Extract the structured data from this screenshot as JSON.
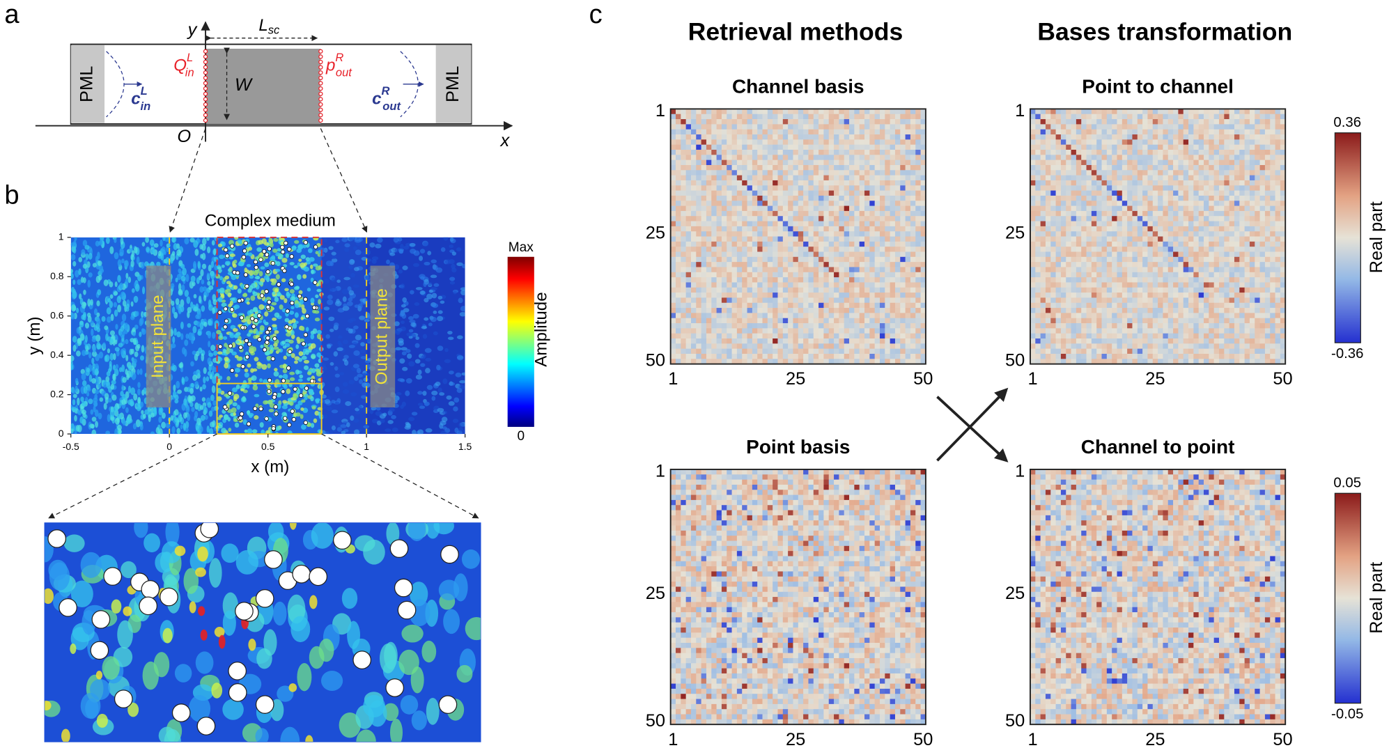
{
  "panels": {
    "a": {
      "label": "a",
      "pml_left": "PML",
      "pml_right": "PML",
      "y_axis": "y",
      "x_axis": "x",
      "origin": "O",
      "length": {
        "main": "L",
        "sub": "sc"
      },
      "width": "W",
      "q_in": {
        "main": "Q",
        "sub": "in",
        "sup": "L"
      },
      "p_out": {
        "main": "p",
        "sub": "out",
        "sup": "R"
      },
      "c_in": {
        "main": "c",
        "sub": "in",
        "sup": "L"
      },
      "c_out": {
        "main": "c",
        "sub": "out",
        "sup": "R"
      }
    },
    "b": {
      "label": "b",
      "title": "Complex medium",
      "input_plane": "Input plane",
      "output_plane": "Output plane",
      "xlabel": "x (m)",
      "ylabel": "y (m)",
      "xlim": [
        -0.5,
        1.5
      ],
      "xticks": [
        -0.5,
        0,
        0.5,
        1,
        1.5
      ],
      "ylim": [
        0,
        1
      ],
      "yticks": [
        0,
        0.2,
        0.4,
        0.6,
        0.8,
        1
      ],
      "colorbar": {
        "max": "Max",
        "min": "0",
        "label": "Amplitude"
      }
    },
    "c": {
      "label": "c",
      "col_titles": [
        "Retrieval methods",
        "Bases transformation"
      ],
      "maps": [
        {
          "title": "Channel basis"
        },
        {
          "title": "Point to channel"
        },
        {
          "title": "Point basis"
        },
        {
          "title": "Channel to point"
        }
      ],
      "ticks": [
        1,
        25,
        50
      ],
      "range": [
        1,
        50
      ],
      "colorbars": [
        {
          "max": 0.36,
          "min": -0.36,
          "label": "Real part"
        },
        {
          "max": 0.05,
          "min": -0.05,
          "label": "Real part"
        }
      ]
    }
  }
}
